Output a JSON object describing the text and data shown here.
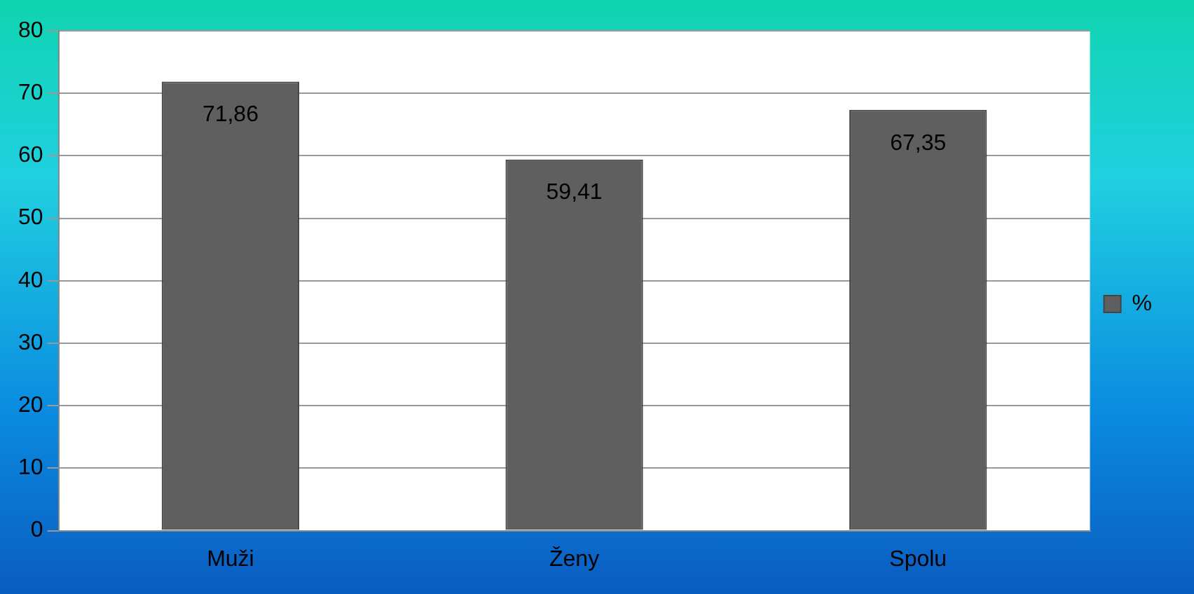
{
  "chart_data": {
    "type": "bar",
    "categories": [
      "Muži",
      "Ženy",
      "Spolu"
    ],
    "series": [
      {
        "name": "%",
        "color": "#5f5f5f",
        "values": [
          71.86,
          59.41,
          67.35
        ],
        "value_labels": [
          "71,86",
          "59,41",
          "67,35"
        ]
      }
    ],
    "ylim": [
      0,
      80
    ],
    "yticks": [
      0,
      10,
      20,
      30,
      40,
      50,
      60,
      70,
      80
    ],
    "grid": "y",
    "legend": "right"
  }
}
